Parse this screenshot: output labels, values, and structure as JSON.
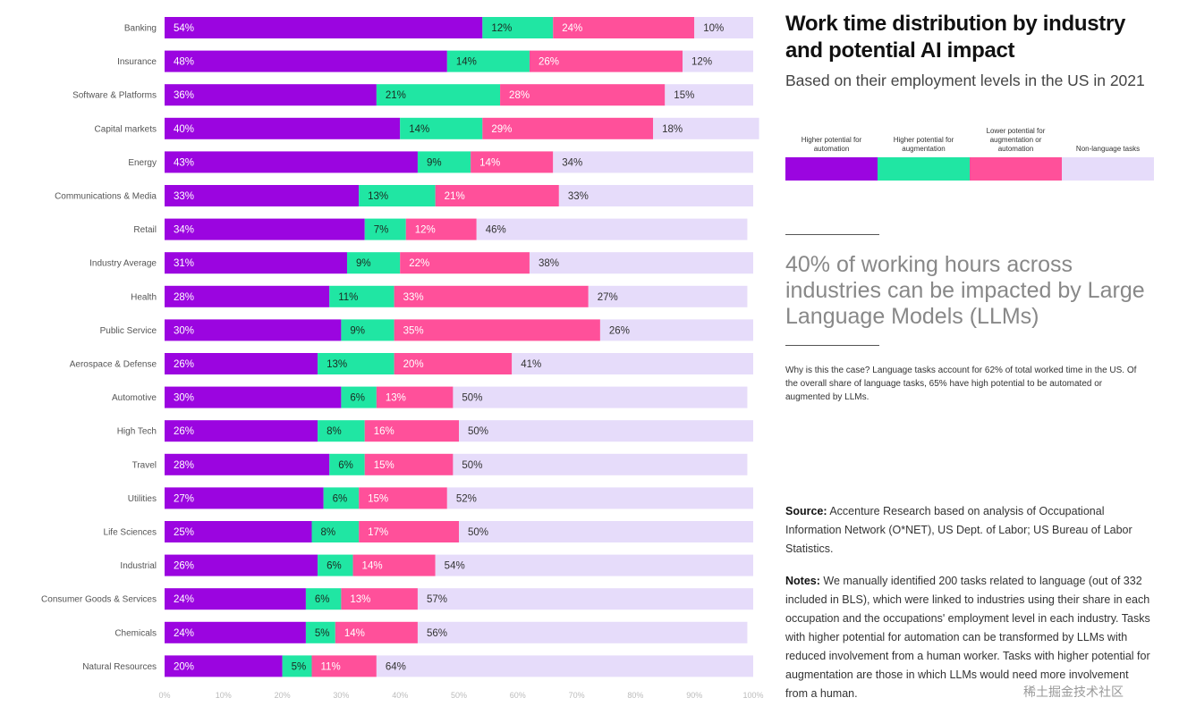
{
  "colors": {
    "automation": "#9b05e0",
    "augmentation": "#20e6a3",
    "lower": "#ff509a",
    "nonlanguage": "#e6dcfa"
  },
  "chart_data": {
    "type": "bar",
    "orientation": "horizontal",
    "stacked": true,
    "title": "Work time distribution by industry and potential AI impact",
    "subtitle": "Based on their employment levels in the US in 2021",
    "categories": [
      "Banking",
      "Insurance",
      "Software & Platforms",
      "Capital markets",
      "Energy",
      "Communications & Media",
      "Retail",
      "Industry Average",
      "Health",
      "Public Service",
      "Aerospace & Defense",
      "Automotive",
      "High Tech",
      "Travel",
      "Utilities",
      "Life Sciences",
      "Industrial",
      "Consumer Goods & Services",
      "Chemicals",
      "Natural Resources"
    ],
    "series": [
      {
        "name": "Higher potential for automation",
        "values": [
          54,
          48,
          36,
          40,
          43,
          33,
          34,
          31,
          28,
          30,
          26,
          30,
          26,
          28,
          27,
          25,
          26,
          24,
          24,
          20
        ]
      },
      {
        "name": "Higher potential for augmentation",
        "values": [
          12,
          14,
          21,
          14,
          9,
          13,
          7,
          9,
          11,
          9,
          13,
          6,
          8,
          6,
          6,
          8,
          6,
          6,
          5,
          5
        ]
      },
      {
        "name": "Lower potential for augmentation or automation",
        "values": [
          24,
          26,
          28,
          29,
          14,
          21,
          12,
          22,
          33,
          35,
          20,
          13,
          16,
          15,
          15,
          17,
          14,
          13,
          14,
          11
        ]
      },
      {
        "name": "Non-language tasks",
        "values": [
          10,
          12,
          15,
          18,
          34,
          33,
          46,
          38,
          27,
          26,
          41,
          50,
          50,
          50,
          52,
          50,
          54,
          57,
          56,
          64
        ]
      }
    ],
    "xlim": [
      0,
      100
    ],
    "xticks": [
      "0%",
      "10%",
      "20%",
      "30%",
      "40%",
      "50%",
      "60%",
      "70%",
      "80%",
      "90%",
      "100%"
    ]
  },
  "right": {
    "title": "Work time distribution by industry and potential AI impact",
    "subtitle": "Based on their employment levels in the US in 2021",
    "legend": [
      "Higher potential for automation",
      "Higher potential for augmentation",
      "Lower potential for augmentation or automation",
      "Non-language tasks"
    ],
    "headline": "40% of working hours across industries can be impacted by Large Language Models (LLMs)",
    "why": "Why is this the case? Language tasks account for 62% of total worked time in the US. Of the overall share of language tasks, 65% have high potential to be automated or augmented by LLMs.",
    "source_label": "Source:",
    "source_text": "Accenture Research based on analysis of Occupational Information Network (O*NET), US Dept. of Labor; US Bureau of Labor Statistics.",
    "notes_label": "Notes:",
    "notes_text": "We manually identified 200 tasks related to language (out of 332 included in BLS), which were linked to industries using their share in each occupation and the occupations' employment level in each industry. Tasks with higher potential for automation can be transformed by LLMs with reduced involvement from a human worker. Tasks with higher potential for augmentation are those in which LLMs would need more involvement from a human.",
    "watermark": "稀土掘金技术社区"
  }
}
